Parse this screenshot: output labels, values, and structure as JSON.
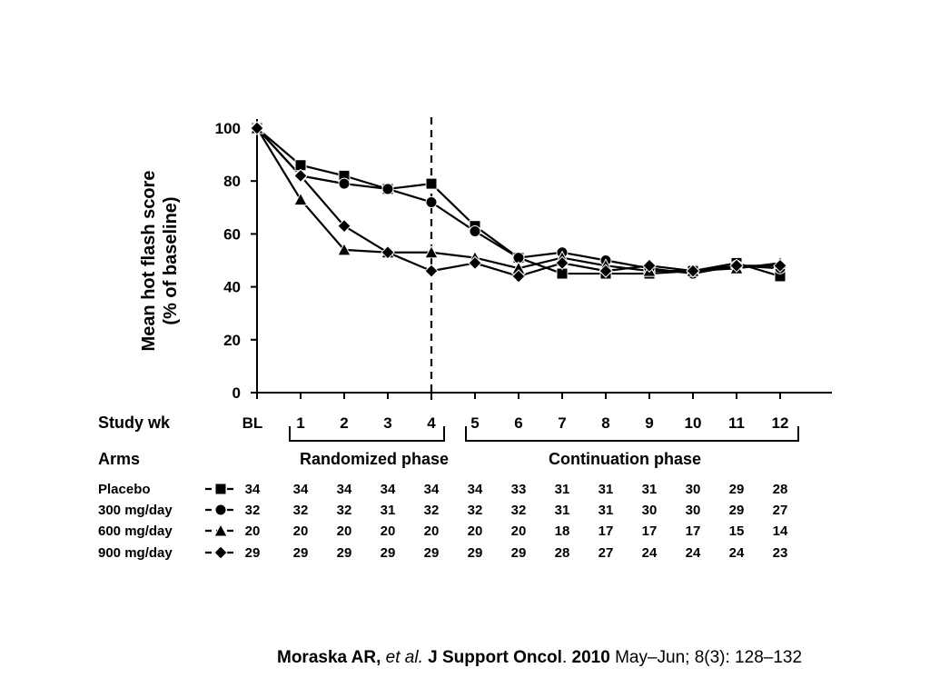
{
  "chart_data": {
    "type": "line",
    "ylabel_line1": "Mean hot flash score",
    "ylabel_line2": "(% of baseline)",
    "ylim": [
      0,
      100
    ],
    "yticks": [
      "0",
      "20",
      "40",
      "60",
      "80",
      "100"
    ],
    "categories": [
      "BL",
      "1",
      "2",
      "3",
      "4",
      "5",
      "6",
      "7",
      "8",
      "9",
      "10",
      "11",
      "12"
    ],
    "grid": false,
    "legend_position": "table-below",
    "reference_line_after": "4",
    "series": [
      {
        "name": "Placebo",
        "marker": "square",
        "values": [
          100,
          86,
          82,
          77,
          79,
          63,
          51,
          45,
          45,
          45,
          46,
          49,
          44
        ]
      },
      {
        "name": "300 mg/day",
        "marker": "circle",
        "values": [
          100,
          82,
          79,
          77,
          72,
          61,
          51,
          53,
          50,
          47,
          45,
          48,
          47
        ]
      },
      {
        "name": "600 mg/day",
        "marker": "triangle",
        "values": [
          100,
          73,
          54,
          53,
          53,
          51,
          47,
          51,
          48,
          46,
          46,
          47,
          49
        ]
      },
      {
        "name": "900 mg/day",
        "marker": "diamond",
        "values": [
          100,
          82,
          63,
          53,
          46,
          49,
          44,
          49,
          46,
          48,
          46,
          48,
          48
        ]
      }
    ]
  },
  "table": {
    "study_wk_label": "Study wk",
    "arms_label": "Arms",
    "randomized_phase_label": "Randomized phase",
    "continuation_phase_label": "Continuation phase",
    "rows": [
      {
        "arm": "Placebo",
        "counts": [
          "34",
          "34",
          "34",
          "34",
          "34",
          "34",
          "33",
          "31",
          "31",
          "31",
          "30",
          "29",
          "28"
        ]
      },
      {
        "arm": "300 mg/day",
        "counts": [
          "32",
          "32",
          "32",
          "31",
          "32",
          "32",
          "32",
          "31",
          "31",
          "30",
          "30",
          "29",
          "27"
        ]
      },
      {
        "arm": "600 mg/day",
        "counts": [
          "20",
          "20",
          "20",
          "20",
          "20",
          "20",
          "20",
          "18",
          "17",
          "17",
          "17",
          "15",
          "14"
        ]
      },
      {
        "arm": "900 mg/day",
        "counts": [
          "29",
          "29",
          "29",
          "29",
          "29",
          "29",
          "29",
          "28",
          "27",
          "24",
          "24",
          "24",
          "23"
        ]
      }
    ]
  },
  "citation": {
    "authors": "Moraska AR,",
    "etal": "et al.",
    "journal": "J Support Oncol",
    "period": ".",
    "year": "2010",
    "rest": "May–Jun; 8(3): 128–132"
  }
}
